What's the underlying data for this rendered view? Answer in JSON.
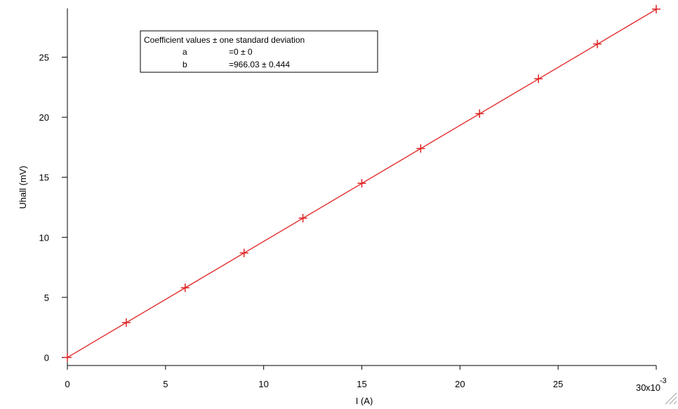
{
  "colors": {
    "series": "#e02020",
    "axes": "#000000",
    "background": "#ffffff"
  },
  "chart_data": {
    "type": "scatter",
    "title": "",
    "xlabel": "I (A)",
    "ylabel": "Uhall (mV)",
    "xlim": [
      0,
      0.03
    ],
    "ylim": [
      0,
      29
    ],
    "x_scale_label": "x10",
    "x_scale_exponent": "-3",
    "x_ticks": [
      0,
      0.005,
      0.01,
      0.015,
      0.02,
      0.025,
      0.03
    ],
    "x_tick_labels": [
      "0",
      "5",
      "10",
      "15",
      "20",
      "25",
      "30"
    ],
    "y_ticks": [
      0,
      5,
      10,
      15,
      20,
      25
    ],
    "y_tick_labels": [
      "0",
      "5",
      "10",
      "15",
      "20",
      "25"
    ],
    "grid": false,
    "legend": "none",
    "series": [
      {
        "marker": "plus",
        "x": [
          0,
          0.003,
          0.006,
          0.009,
          0.012,
          0.015,
          0.018,
          0.021,
          0.024,
          0.027,
          0.03
        ],
        "y": [
          0,
          2.9,
          5.8,
          8.7,
          11.6,
          14.5,
          17.4,
          20.3,
          23.2,
          26.1,
          29.0
        ]
      }
    ],
    "fit_line": {
      "x": [
        0,
        0.03
      ],
      "y": [
        0,
        28.98
      ]
    },
    "annotation": {
      "header": "Coefficient values ± one standard deviation",
      "rows": [
        {
          "name": "a",
          "value": "=0 ± 0"
        },
        {
          "name": "b",
          "value": "=966.03 ± 0.444"
        }
      ]
    }
  }
}
